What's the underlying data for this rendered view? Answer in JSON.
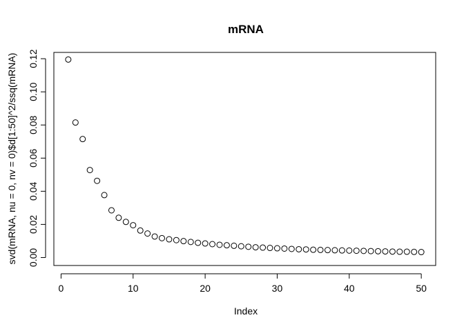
{
  "chart_data": {
    "type": "scatter",
    "title": "mRNA",
    "xlabel": "Index",
    "ylabel": "svd(mRNA, nu = 0, nv = 0)$d[1:50]^2/ssq(mRNA)",
    "xlim": [
      -1,
      52
    ],
    "ylim": [
      -0.0048,
      0.1238
    ],
    "x_ticks": [
      0,
      10,
      20,
      30,
      40,
      50
    ],
    "x_tick_labels": [
      "0",
      "10",
      "20",
      "30",
      "40",
      "50"
    ],
    "y_ticks": [
      0.0,
      0.02,
      0.04,
      0.06,
      0.08,
      0.1,
      0.12
    ],
    "y_tick_labels": [
      "0.00",
      "0.02",
      "0.04",
      "0.06",
      "0.08",
      "0.10",
      "0.12"
    ],
    "marker": "open-circle",
    "grid": false,
    "legend": "none",
    "x": [
      1,
      2,
      3,
      4,
      5,
      6,
      7,
      8,
      9,
      10,
      11,
      12,
      13,
      14,
      15,
      16,
      17,
      18,
      19,
      20,
      21,
      22,
      23,
      24,
      25,
      26,
      27,
      28,
      29,
      30,
      31,
      32,
      33,
      34,
      35,
      36,
      37,
      38,
      39,
      40,
      41,
      42,
      43,
      44,
      45,
      46,
      47,
      48,
      49,
      50
    ],
    "y": [
      0.1195,
      0.0815,
      0.0715,
      0.0528,
      0.0463,
      0.0377,
      0.0285,
      0.024,
      0.0215,
      0.0195,
      0.0163,
      0.0145,
      0.0127,
      0.0117,
      0.011,
      0.0105,
      0.0099,
      0.0094,
      0.0089,
      0.0085,
      0.0081,
      0.0077,
      0.0074,
      0.0071,
      0.0068,
      0.0065,
      0.0062,
      0.006,
      0.0058,
      0.0056,
      0.0054,
      0.0052,
      0.005,
      0.0049,
      0.0047,
      0.0046,
      0.0045,
      0.0044,
      0.0043,
      0.0042,
      0.0041,
      0.004,
      0.0039,
      0.0038,
      0.0037,
      0.0036,
      0.0035,
      0.0035,
      0.0034,
      0.0033
    ]
  }
}
